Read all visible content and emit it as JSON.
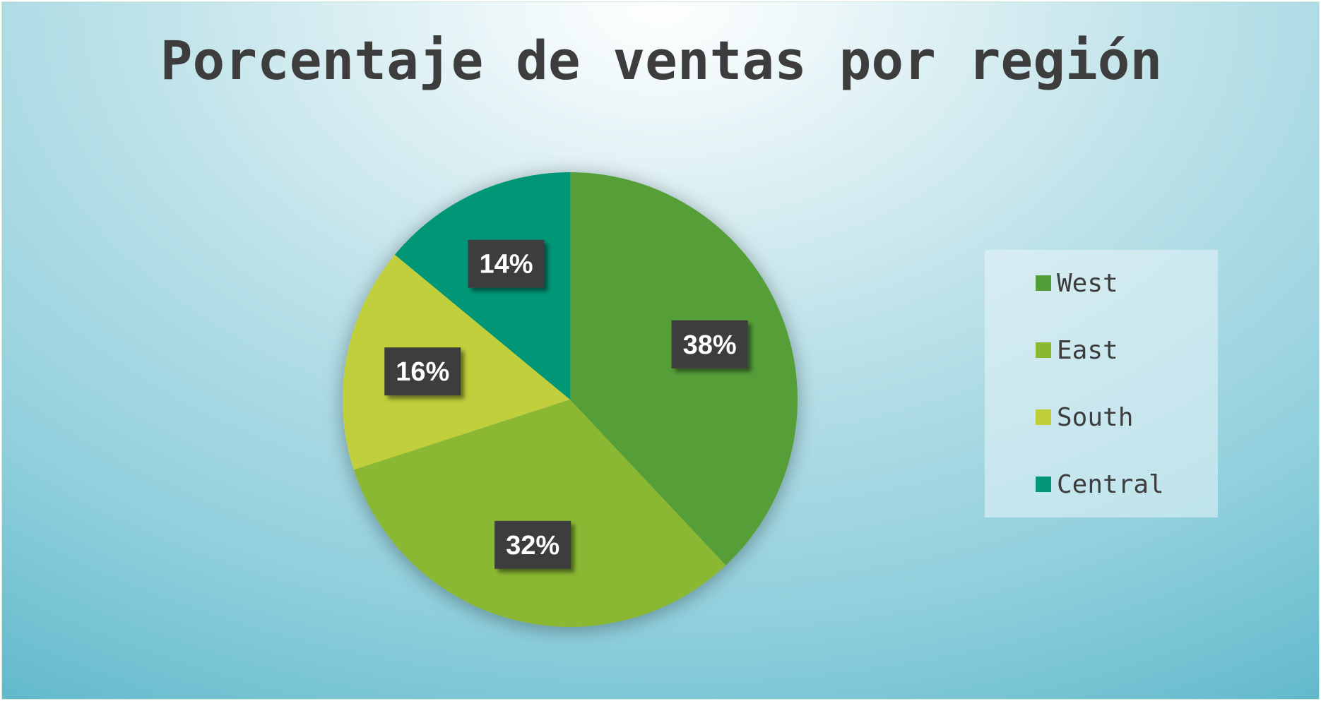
{
  "chart_data": {
    "type": "pie",
    "title": "Porcentaje de ventas por región",
    "categories": [
      "West",
      "East",
      "South",
      "Central"
    ],
    "values": [
      38,
      32,
      16,
      14
    ],
    "labels": [
      "38%",
      "32%",
      "16%",
      "14%"
    ],
    "colors": [
      "#549e39",
      "#8ab833",
      "#c0cf3a",
      "#029676"
    ],
    "legend_position": "right"
  }
}
